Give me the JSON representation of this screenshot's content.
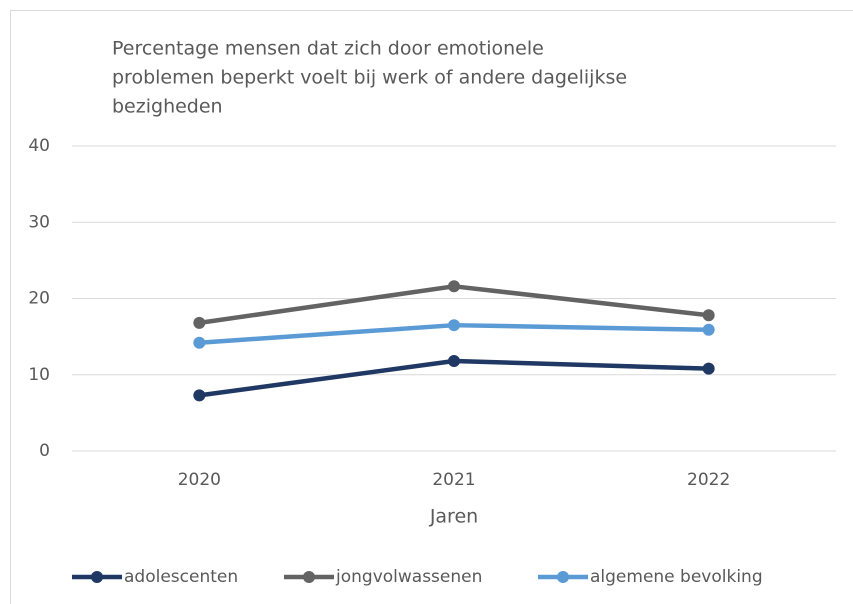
{
  "chart_data": {
    "type": "line",
    "title": [
      "Percentage mensen dat zich door emotionele",
      "problemen beperkt voelt bij werk of andere dagelijkse",
      "bezigheden"
    ],
    "x_label": "Jaren",
    "categories": [
      "2020",
      "2021",
      "2022"
    ],
    "series": [
      {
        "name": "adolescenten",
        "color": "#203864",
        "values": [
          7.3,
          11.8,
          10.8
        ]
      },
      {
        "name": "jongvolwassenen",
        "color": "#636363",
        "values": [
          16.8,
          21.6,
          17.8
        ]
      },
      {
        "name": "algemene bevolking",
        "color": "#5b9bd5",
        "values": [
          14.2,
          16.5,
          15.9
        ]
      }
    ],
    "ylim": [
      0,
      40
    ],
    "yticks": [
      0,
      10,
      20,
      30,
      40
    ],
    "grid": true,
    "legend": "bottom"
  }
}
